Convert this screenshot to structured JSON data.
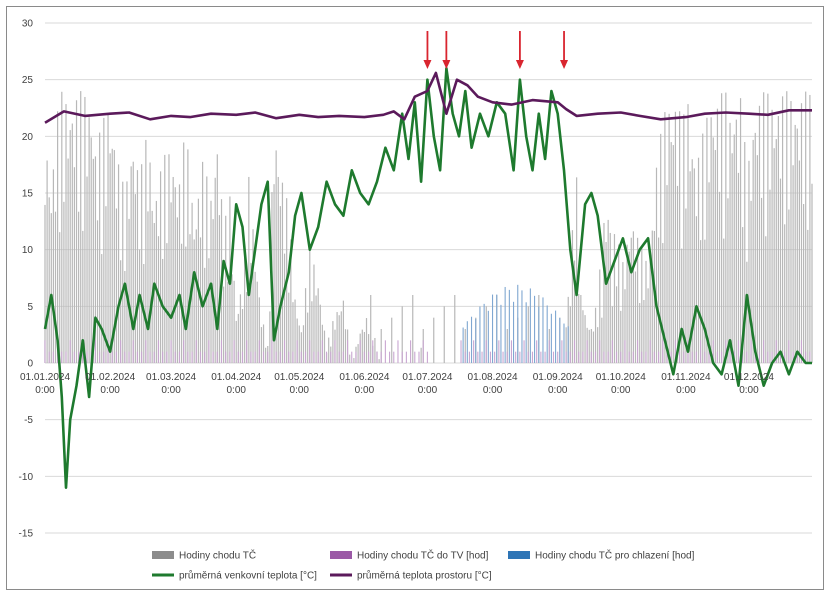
{
  "chart_data": {
    "type": "line",
    "title": "",
    "xlabel": "",
    "ylabel": "",
    "ylim": [
      -15,
      30
    ],
    "y_ticks": [
      "30",
      "25",
      "20",
      "15",
      "10",
      "5",
      "0",
      "-5",
      "-10",
      "-15"
    ],
    "x_ticks": [
      {
        "date": "01.01.2024",
        "time": "0:00"
      },
      {
        "date": "01.02.2024",
        "time": "0:00"
      },
      {
        "date": "01.03.2024",
        "time": "0:00"
      },
      {
        "date": "01.04.2024",
        "time": "0:00"
      },
      {
        "date": "01.05.2024",
        "time": "0:00"
      },
      {
        "date": "01.06.2024",
        "time": "0:00"
      },
      {
        "date": "01.07.2024",
        "time": "0:00"
      },
      {
        "date": "01.08.2024",
        "time": "0:00"
      },
      {
        "date": "01.09.2024",
        "time": "0:00"
      },
      {
        "date": "01.10.2024",
        "time": "0:00"
      },
      {
        "date": "01.11.2024",
        "time": "0:00"
      },
      {
        "date": "01.12.2024",
        "time": "0:00"
      }
    ],
    "grid": true,
    "legend_position": "bottom",
    "legend": [
      {
        "name": "Hodiny chodu TČ",
        "color": "#8c8c8c",
        "kind": "box"
      },
      {
        "name": "Hodiny chodu TČ do TV  [hod]",
        "color": "#9b59a6",
        "kind": "box"
      },
      {
        "name": "Hodiny chodu TČ pro chlazení [hod]",
        "color": "#2e75b6",
        "kind": "box"
      },
      {
        "name": "průměrná venkovní teplota [°C]",
        "color": "#1e7a2e",
        "kind": "line"
      },
      {
        "name": "průměrná teplota prostoru [°C]",
        "color": "#5b1a5b",
        "kind": "line"
      }
    ],
    "colors": {
      "heat_hours": "#b8b8b8",
      "dhw_hours": "#c9a6d1",
      "cooling_hours": "#7fa7d1",
      "outdoor_temp": "#1e7a2e",
      "room_temp": "#5b1a5b",
      "arrows": "#d9252f"
    },
    "annotation_arrows_x": [
      "2024-07-01",
      "2024-07-10",
      "2024-08-14",
      "2024-09-04"
    ],
    "series": [
      {
        "name": "průměrná venkovní teplota [°C]",
        "x": [
          "2024-01-01",
          "2024-01-04",
          "2024-01-07",
          "2024-01-09",
          "2024-01-11",
          "2024-01-13",
          "2024-01-16",
          "2024-01-19",
          "2024-01-22",
          "2024-01-25",
          "2024-01-28",
          "2024-02-01",
          "2024-02-05",
          "2024-02-08",
          "2024-02-12",
          "2024-02-15",
          "2024-02-19",
          "2024-02-22",
          "2024-02-26",
          "2024-03-01",
          "2024-03-05",
          "2024-03-08",
          "2024-03-12",
          "2024-03-16",
          "2024-03-20",
          "2024-03-23",
          "2024-03-26",
          "2024-03-29",
          "2024-04-01",
          "2024-04-04",
          "2024-04-07",
          "2024-04-10",
          "2024-04-13",
          "2024-04-16",
          "2024-04-19",
          "2024-04-22",
          "2024-04-26",
          "2024-04-29",
          "2024-05-02",
          "2024-05-06",
          "2024-05-10",
          "2024-05-14",
          "2024-05-18",
          "2024-05-22",
          "2024-05-26",
          "2024-05-30",
          "2024-06-03",
          "2024-06-07",
          "2024-06-11",
          "2024-06-15",
          "2024-06-19",
          "2024-06-22",
          "2024-06-25",
          "2024-06-28",
          "2024-07-01",
          "2024-07-04",
          "2024-07-07",
          "2024-07-10",
          "2024-07-13",
          "2024-07-16",
          "2024-07-19",
          "2024-07-22",
          "2024-07-26",
          "2024-07-30",
          "2024-08-03",
          "2024-08-07",
          "2024-08-11",
          "2024-08-14",
          "2024-08-17",
          "2024-08-20",
          "2024-08-23",
          "2024-08-26",
          "2024-08-29",
          "2024-09-01",
          "2024-09-04",
          "2024-09-07",
          "2024-09-10",
          "2024-09-14",
          "2024-09-17",
          "2024-09-20",
          "2024-09-24",
          "2024-09-28",
          "2024-10-02",
          "2024-10-06",
          "2024-10-10",
          "2024-10-14",
          "2024-10-18",
          "2024-10-22",
          "2024-10-26",
          "2024-10-30",
          "2024-11-02",
          "2024-11-06",
          "2024-11-10",
          "2024-11-14",
          "2024-11-18",
          "2024-11-22",
          "2024-11-26",
          "2024-11-30",
          "2024-12-04",
          "2024-12-08",
          "2024-12-12",
          "2024-12-16",
          "2024-12-20",
          "2024-12-24",
          "2024-12-28",
          "2024-12-31"
        ],
        "y": [
          3,
          6,
          2,
          -3,
          -11,
          -5,
          -2,
          2,
          -3,
          4,
          3,
          1,
          5,
          7,
          3,
          6,
          3,
          7,
          5,
          4,
          6,
          3,
          8,
          5,
          7,
          3,
          9,
          7,
          14,
          12,
          6,
          10,
          14,
          16,
          2,
          5,
          8,
          13,
          15,
          10,
          12,
          16,
          14,
          13,
          17,
          15,
          14,
          16,
          19,
          17,
          22,
          18,
          23,
          16,
          25,
          20,
          17,
          26,
          22,
          20,
          24,
          19,
          22,
          20,
          23,
          22,
          17,
          25,
          20,
          17,
          22,
          18,
          24,
          22,
          17,
          10,
          6,
          14,
          15,
          13,
          7,
          9,
          11,
          8,
          10,
          11,
          5,
          2,
          -1,
          3,
          1,
          5,
          3,
          0,
          -1,
          2,
          -2,
          6,
          1,
          -2,
          0,
          1,
          -1,
          1,
          0,
          0
        ]
      },
      {
        "name": "průměrná teplota prostoru [°C]",
        "x": [
          "2024-01-01",
          "2024-01-10",
          "2024-01-20",
          "2024-02-01",
          "2024-02-10",
          "2024-02-20",
          "2024-03-01",
          "2024-03-10",
          "2024-03-20",
          "2024-04-01",
          "2024-04-10",
          "2024-04-20",
          "2024-05-01",
          "2024-05-10",
          "2024-05-20",
          "2024-06-01",
          "2024-06-10",
          "2024-06-15",
          "2024-06-20",
          "2024-06-25",
          "2024-07-01",
          "2024-07-05",
          "2024-07-10",
          "2024-07-15",
          "2024-07-20",
          "2024-07-25",
          "2024-08-01",
          "2024-08-10",
          "2024-08-20",
          "2024-09-01",
          "2024-09-05",
          "2024-09-10",
          "2024-09-20",
          "2024-10-01",
          "2024-10-10",
          "2024-10-20",
          "2024-11-01",
          "2024-11-10",
          "2024-11-20",
          "2024-12-01",
          "2024-12-10",
          "2024-12-20",
          "2024-12-31"
        ],
        "y": [
          21.2,
          22.2,
          21.8,
          22.0,
          22.1,
          21.5,
          21.8,
          21.7,
          22.0,
          21.9,
          22.1,
          21.6,
          21.9,
          21.7,
          21.8,
          21.7,
          21.9,
          22.2,
          21.5,
          23.5,
          24.0,
          25.6,
          22.0,
          25.0,
          24.5,
          23.5,
          23.0,
          22.8,
          23.2,
          23.0,
          22.4,
          21.8,
          22.0,
          22.1,
          21.8,
          21.5,
          21.7,
          22.0,
          22.1,
          22.0,
          21.9,
          22.3,
          22.3
        ]
      }
    ]
  }
}
